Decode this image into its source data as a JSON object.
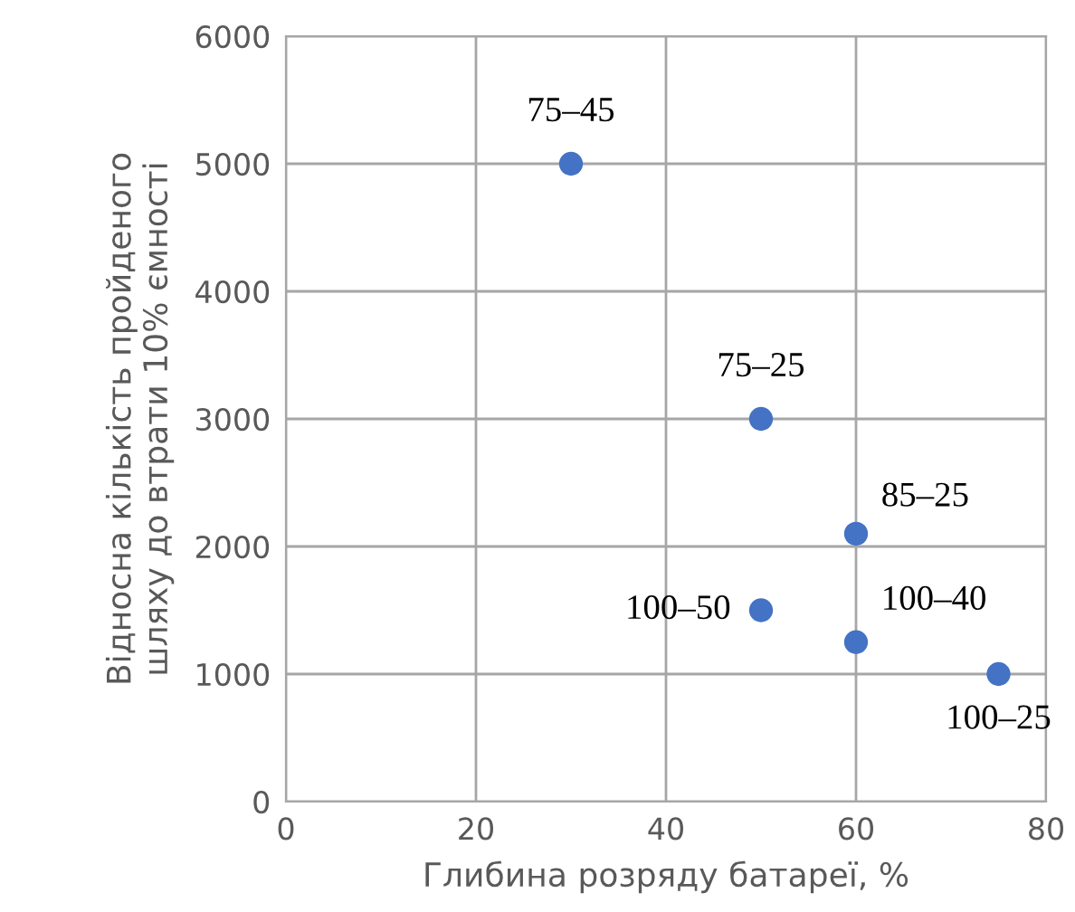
{
  "chart_data": {
    "type": "scatter",
    "xlabel": "Глибина розряду батареї, %",
    "ylabel": "Відносна кількість пройденого\nшляху до втрати 10% ємності",
    "x": [
      30,
      50,
      60,
      50,
      60,
      75
    ],
    "values": [
      5000,
      3000,
      2100,
      1500,
      1250,
      1000
    ],
    "color": "#4472c4",
    "marker": "circle",
    "xlim": [
      0,
      80
    ],
    "xticks": [
      0,
      20,
      40,
      60,
      80
    ],
    "ylim": [
      0,
      6000
    ],
    "yticks": [
      0,
      1000,
      2000,
      3000,
      4000,
      5000,
      6000
    ],
    "grid": true,
    "annotations": [
      {
        "text": "75–45",
        "x": 30,
        "y": 5000
      },
      {
        "text": "75–25",
        "x": 50,
        "y": 3000
      },
      {
        "text": "85–25",
        "x": 60,
        "y": 2100
      },
      {
        "text": "100–50",
        "x": 50,
        "y": 1500
      },
      {
        "text": "100–40",
        "x": 60,
        "y": 1250
      },
      {
        "text": "100–25",
        "x": 75,
        "y": 1000
      }
    ]
  }
}
